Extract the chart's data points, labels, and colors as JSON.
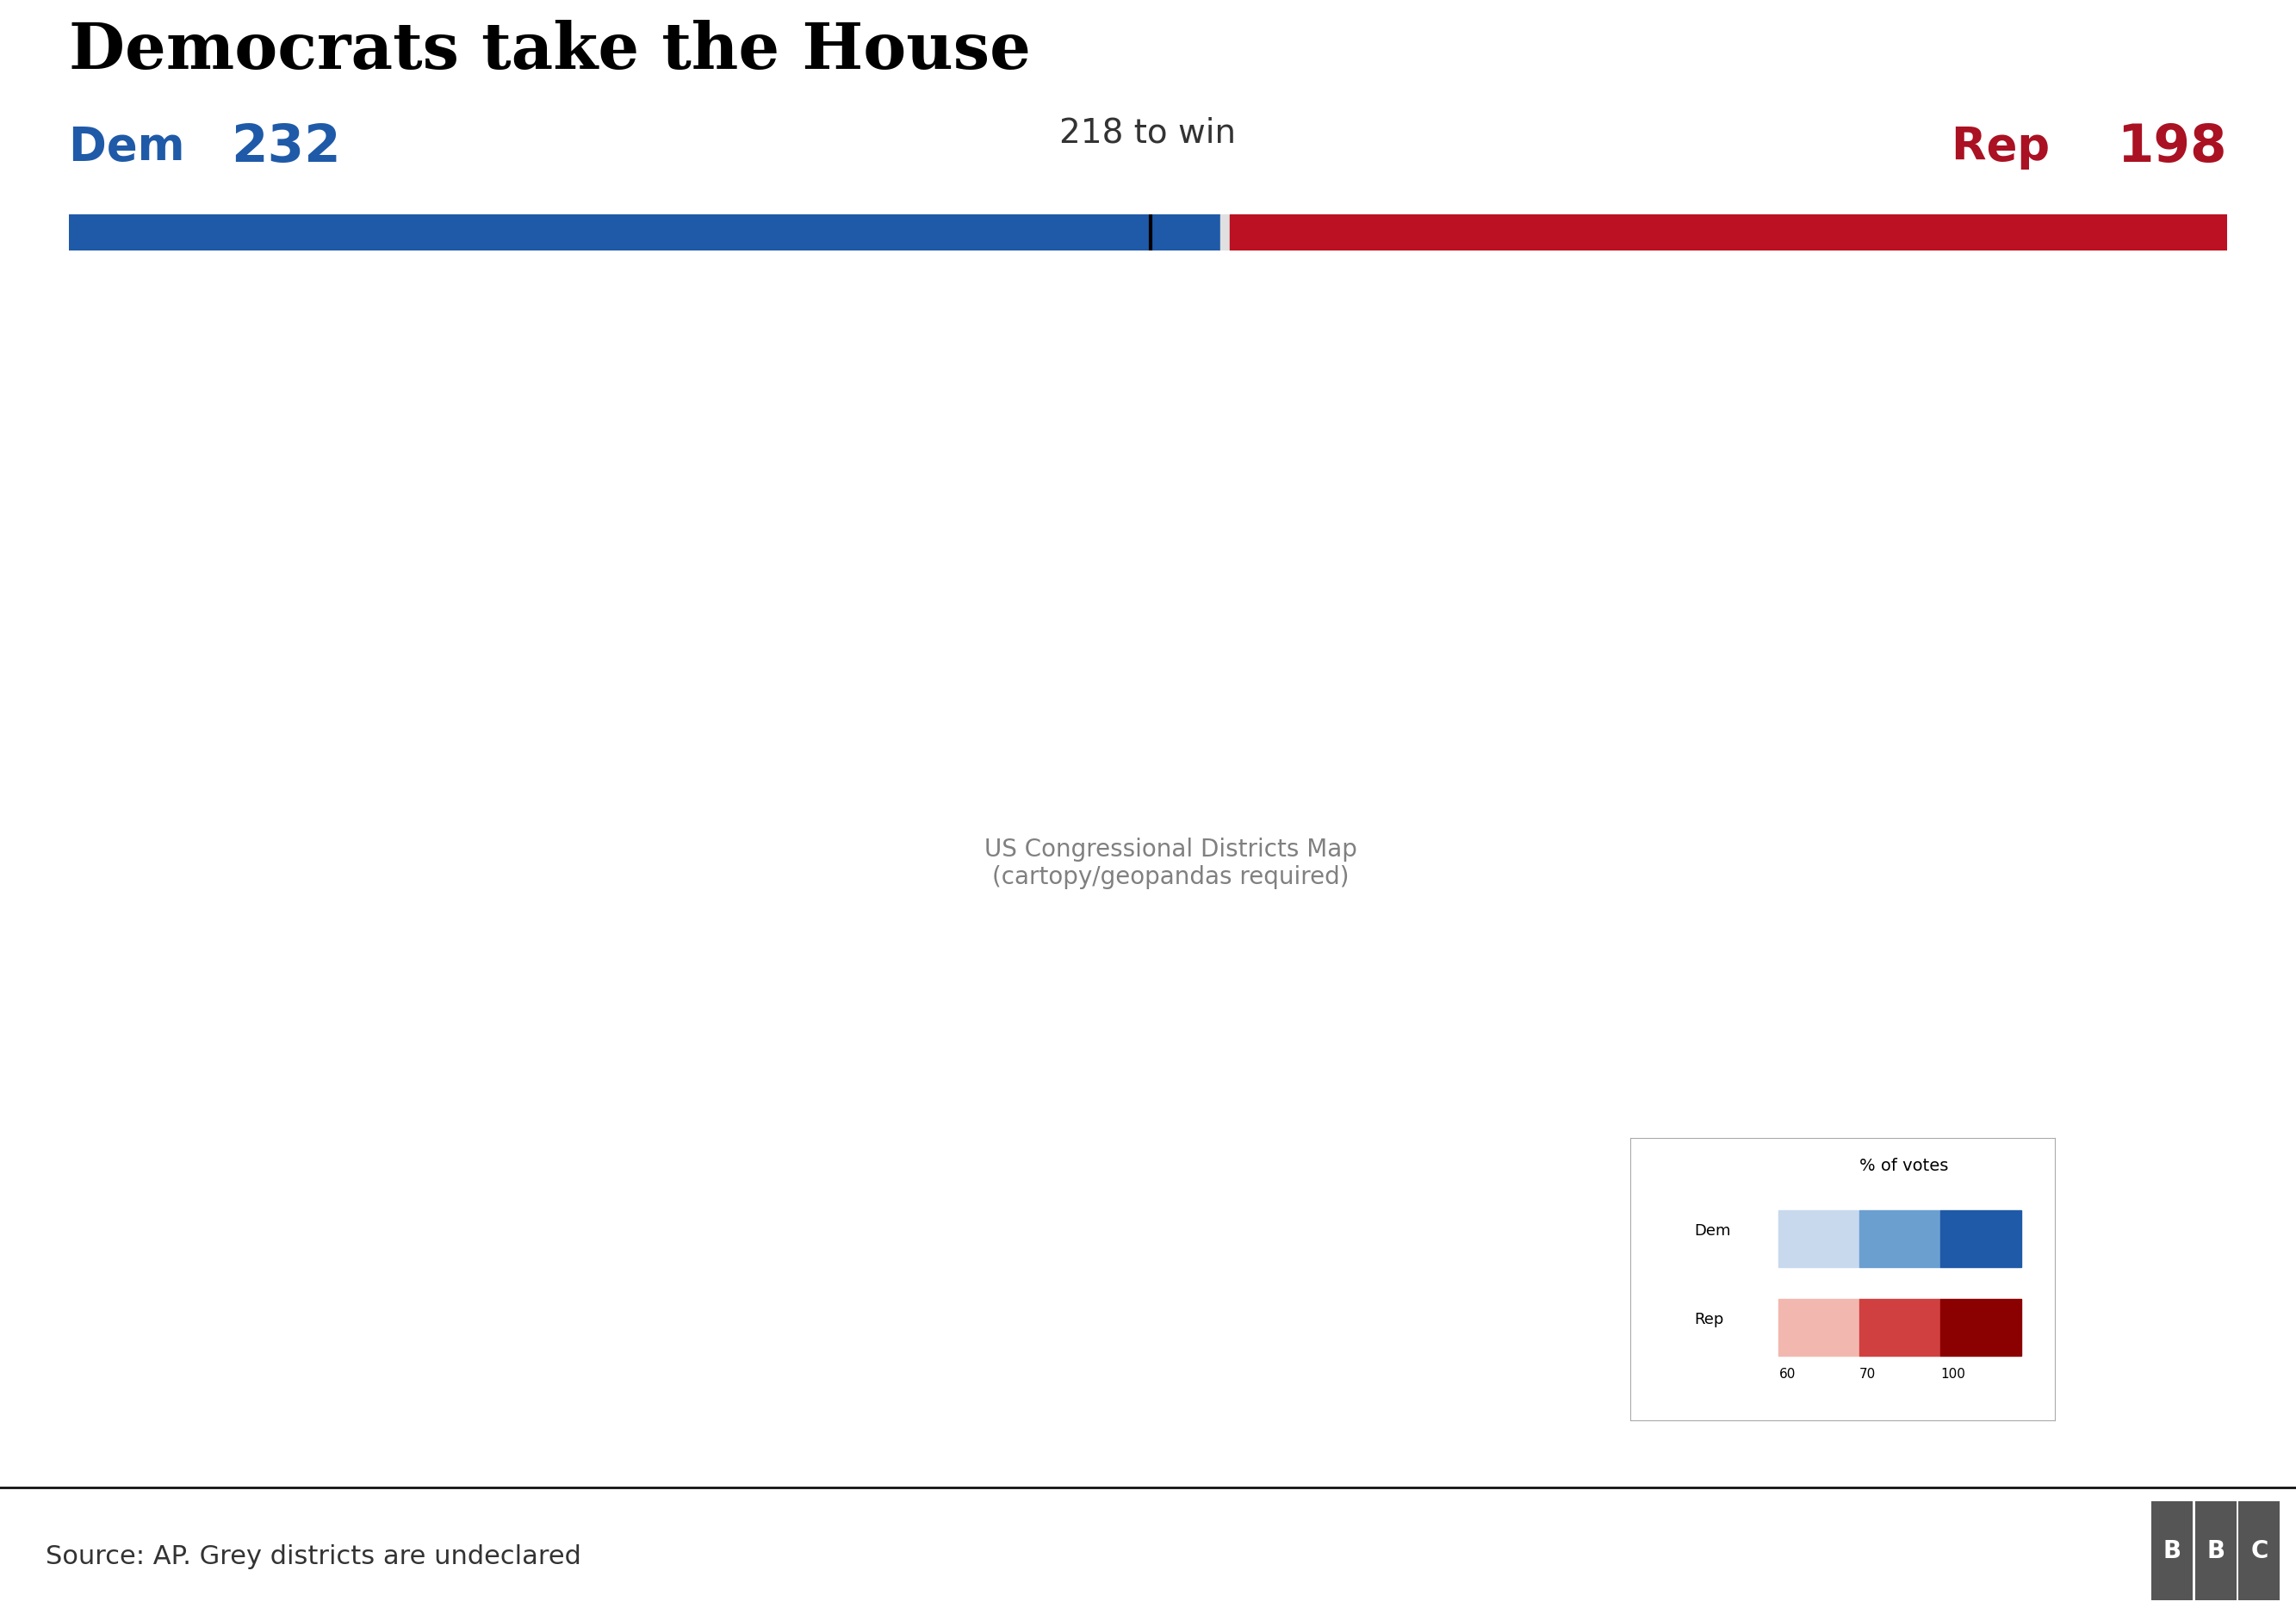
{
  "title": "Democrats take the House",
  "dem_count": "232",
  "rep_count": "198",
  "dem_label": "Dem",
  "rep_label": "Rep",
  "threshold_label": "218 to win",
  "dem_seats": 232,
  "rep_seats": 198,
  "total_seats": 435,
  "threshold": 218,
  "source_text": "Source: AP. Grey districts are undeclared",
  "title_color": "#000000",
  "dem_color": "#1f5aa8",
  "rep_color": "#aa1122",
  "dem_bar_color": "#1f5aa8",
  "rep_bar_color": "#bb1122",
  "footer_line_color": "#111111",
  "background_color": "#ffffff",
  "legend_title": "% of votes",
  "legend_dem_label": "Dem",
  "legend_rep_label": "Rep",
  "legend_ticks": [
    "60",
    "70",
    "100"
  ],
  "dem_light": "#c8d9ee",
  "dem_mid": "#6a9fd0",
  "dem_dark": "#1f5aa8",
  "rep_light": "#f2b8b0",
  "rep_mid": "#d04040",
  "rep_dark": "#8b0000",
  "undeclared_color": "#cccccc",
  "bar_gap_color": "#e0e0e0",
  "map_bg": "#ffffff",
  "district_edge": "#ffffff",
  "state_edge": "#ffffff"
}
